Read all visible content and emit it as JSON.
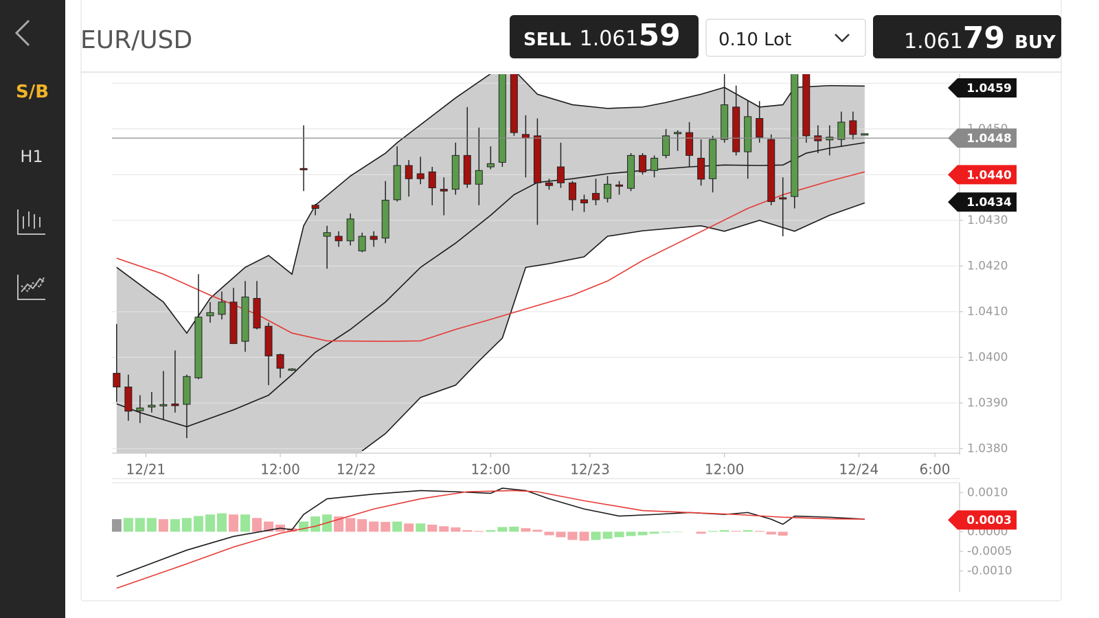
{
  "sidebar": {
    "items": [
      "S/B",
      "H1"
    ]
  },
  "header": {
    "title": "EUR/USD",
    "sell": {
      "label": "SELL",
      "price": "1.061",
      "pips": "59"
    },
    "lot": "0.10 Lot",
    "buy": {
      "price": "1.061",
      "pips": "79",
      "label": "BUY"
    }
  },
  "chart_data": [
    {
      "type": "candlestick",
      "candles": {
        "open": [
          1.03965,
          1.03935,
          1.03883,
          1.03891,
          1.03894,
          1.03898,
          1.03897,
          1.03955,
          1.04091,
          1.04094,
          1.04121,
          1.04035,
          1.04129,
          1.04068,
          1.04006,
          1.03973,
          1.04412,
          1.04333,
          1.04265,
          1.04265,
          1.04255,
          1.04233,
          1.04265,
          1.04261,
          1.04345,
          1.0442,
          1.04402,
          1.04406,
          1.04368,
          1.04368,
          1.04442,
          1.04379,
          1.04417,
          1.04427,
          1.04624,
          1.04488,
          1.04485,
          1.04382,
          1.04417,
          1.04382,
          1.04345,
          1.04359,
          1.04348,
          1.04376,
          1.0437,
          1.04442,
          1.04409,
          1.04442,
          1.04488,
          1.04492,
          1.04436,
          1.04391,
          1.04477,
          1.04548,
          1.0445,
          1.04523,
          1.04477,
          1.04348,
          1.04352,
          1.04621,
          1.04485,
          1.04476,
          1.04477,
          1.04518,
          1.04488
        ],
        "high": [
          1.04073,
          1.03962,
          1.03917,
          1.03924,
          1.0397,
          1.04015,
          1.03962,
          1.04182,
          1.04121,
          1.04144,
          1.04152,
          1.04167,
          1.04167,
          1.04076,
          1.04008,
          1.03976,
          1.04508,
          1.04336,
          1.04288,
          1.04276,
          1.04315,
          1.04273,
          1.04276,
          1.04386,
          1.04462,
          1.04432,
          1.04439,
          1.04417,
          1.04394,
          1.0447,
          1.04548,
          1.04503,
          1.04462,
          1.04644,
          1.04652,
          1.0453,
          1.04523,
          1.04391,
          1.0447,
          1.04386,
          1.04356,
          1.04391,
          1.04397,
          1.04386,
          1.04447,
          1.04447,
          1.04442,
          1.045,
          1.04497,
          1.04515,
          1.04477,
          1.04485,
          1.04627,
          1.04595,
          1.04561,
          1.04561,
          1.04488,
          1.04394,
          1.04667,
          1.04629,
          1.04508,
          1.04508,
          1.04538,
          1.04538,
          1.0449
        ],
        "low": [
          1.03902,
          1.03861,
          1.03856,
          1.03879,
          1.03864,
          1.03879,
          1.03823,
          1.03952,
          1.04076,
          1.04083,
          1.0403,
          1.04012,
          1.04061,
          1.03939,
          1.03955,
          1.0397,
          1.04364,
          1.04311,
          1.04194,
          1.04242,
          1.04245,
          1.0423,
          1.04242,
          1.0425,
          1.04341,
          1.04352,
          1.04379,
          1.04333,
          1.04311,
          1.04356,
          1.04371,
          1.04333,
          1.04412,
          1.04417,
          1.04485,
          1.04394,
          1.0429,
          1.04367,
          1.04371,
          1.04321,
          1.04318,
          1.04333,
          1.04339,
          1.04356,
          1.04364,
          1.044,
          1.04394,
          1.04436,
          1.04452,
          1.04417,
          1.04376,
          1.04361,
          1.0447,
          1.04442,
          1.04391,
          1.0447,
          1.04333,
          1.04265,
          1.04326,
          1.0447,
          1.04447,
          1.04442,
          1.04462,
          1.04477,
          1.04486
        ],
        "close": [
          1.03935,
          1.03882,
          1.03889,
          1.03895,
          1.03895,
          1.03894,
          1.03958,
          1.04088,
          1.04098,
          1.04121,
          1.0403,
          1.04132,
          1.04064,
          1.04003,
          1.03976,
          1.03973,
          1.04409,
          1.04326,
          1.04273,
          1.04255,
          1.04303,
          1.04265,
          1.04258,
          1.04344,
          1.0442,
          1.04391,
          1.04391,
          1.04371,
          1.04364,
          1.04442,
          1.04379,
          1.04409,
          1.04424,
          1.04624,
          1.04492,
          1.0448,
          1.04382,
          1.04376,
          1.04382,
          1.04345,
          1.04338,
          1.04345,
          1.04379,
          1.04374,
          1.04442,
          1.04406,
          1.04436,
          1.04485,
          1.04491,
          1.04442,
          1.0439,
          1.04477,
          1.04553,
          1.0445,
          1.04527,
          1.04482,
          1.04341,
          1.04345,
          1.04621,
          1.04485,
          1.04474,
          1.04482,
          1.04515,
          1.04488,
          1.04488
        ]
      },
      "up_color": "#5c9a4c",
      "down_color": "#a3120f",
      "band_fill": "#cdcdcd",
      "series": [
        {
          "color": "#1a1a1a",
          "x": [
            0,
            4,
            6,
            8,
            9,
            11,
            13,
            15,
            16,
            17,
            20,
            23,
            24,
            29,
            32,
            34,
            36,
            39,
            42,
            45,
            47,
            50,
            52,
            55,
            57,
            58,
            61,
            64
          ],
          "values": [
            1.04197,
            1.04121,
            1.04053,
            1.04129,
            1.04152,
            1.04197,
            1.04223,
            1.04182,
            1.04288,
            1.04333,
            1.04397,
            1.04447,
            1.0447,
            1.04568,
            1.04621,
            1.04629,
            1.04576,
            1.04553,
            1.04545,
            1.04548,
            1.04558,
            1.04576,
            1.04591,
            1.04548,
            1.04553,
            1.04591,
            1.04595,
            1.04594
          ]
        },
        {
          "color": "#1a1a1a",
          "x": [
            0,
            2,
            6,
            10,
            13,
            15,
            17,
            20,
            23,
            26,
            29,
            32,
            34,
            36,
            39,
            42,
            45,
            49,
            52,
            55,
            57,
            59,
            61,
            64
          ],
          "values": [
            1.03898,
            1.03879,
            1.03848,
            1.03885,
            1.03917,
            1.03962,
            1.04011,
            1.04061,
            1.04121,
            1.04197,
            1.0425,
            1.04311,
            1.04356,
            1.04383,
            1.04391,
            1.04402,
            1.04409,
            1.04417,
            1.04421,
            1.0442,
            1.04421,
            1.04447,
            1.04458,
            1.0447
          ]
        },
        {
          "color": "#1a1a1a",
          "x": [
            21,
            23,
            26,
            29,
            31,
            33,
            35,
            37,
            40,
            42,
            45,
            50,
            52,
            55,
            58,
            61,
            64
          ],
          "values": [
            1.03795,
            1.03833,
            1.03912,
            1.03939,
            1.03992,
            1.04042,
            1.04197,
            1.04205,
            1.0422,
            1.04265,
            1.04277,
            1.04288,
            1.04276,
            1.043,
            1.04276,
            1.04311,
            1.04338
          ]
        },
        {
          "color": "#e53935",
          "x": [
            0,
            4,
            8,
            12,
            15,
            18,
            23,
            26,
            29,
            32,
            35,
            39,
            42,
            45,
            48,
            51,
            54,
            57,
            61,
            64
          ],
          "values": [
            1.04217,
            1.04182,
            1.04136,
            1.04094,
            1.04053,
            1.04036,
            1.04035,
            1.04036,
            1.04061,
            1.04083,
            1.04106,
            1.04136,
            1.04167,
            1.04212,
            1.0425,
            1.04288,
            1.04326,
            1.04356,
            1.04386,
            1.04406
          ]
        }
      ],
      "xlim": [
        -0.4,
        72
      ],
      "xticks": [
        {
          "value": 2.5,
          "label": "12/21"
        },
        {
          "value": 14,
          "label": "12:00"
        },
        {
          "value": 20.5,
          "label": "12/22"
        },
        {
          "value": 32,
          "label": "12:00"
        },
        {
          "value": 40.5,
          "label": "12/23"
        },
        {
          "value": 52,
          "label": "12:00"
        },
        {
          "value": 63.5,
          "label": "12/24"
        },
        {
          "value": 70,
          "label": "6:00"
        }
      ],
      "ylim": [
        1.0379,
        1.0462
      ],
      "yticks": [
        {
          "value": 1.038,
          "label": "1.0380"
        },
        {
          "value": 1.039,
          "label": "1.0390"
        },
        {
          "value": 1.04,
          "label": "1.0400"
        },
        {
          "value": 1.041,
          "label": "1.0410"
        },
        {
          "value": 1.042,
          "label": "1.0420"
        },
        {
          "value": 1.043,
          "label": "1.0430"
        },
        {
          "value": 1.044,
          "label": "1.0440"
        },
        {
          "value": 1.045,
          "label": "1.0450"
        },
        {
          "value": 1.046,
          "label": "1.0460"
        }
      ],
      "grid": true,
      "current_price": {
        "value": 1.0448,
        "color": "#8a8a8a"
      },
      "markers": [
        {
          "value": 1.0459,
          "color": "#111111"
        },
        {
          "value": 1.044,
          "label": "1.0440",
          "color": "#ee1c1c"
        },
        {
          "value": 1.0434,
          "color": "#111111"
        }
      ]
    },
    {
      "type": "macd",
      "histogram": {
        "values": [
          0.00032,
          0.00035,
          0.00035,
          0.00035,
          0.00032,
          0.00032,
          0.00035,
          0.0004,
          0.00044,
          0.00047,
          0.00044,
          0.00044,
          0.00035,
          0.00026,
          0.00018,
          9e-05,
          0.00026,
          0.00039,
          0.00044,
          0.00039,
          0.00035,
          0.00032,
          0.00026,
          0.00025,
          0.00026,
          0.00021,
          0.00021,
          0.00018,
          0.00014,
          0.00011,
          4e-05,
          2e-05,
          4e-05,
          0.00012,
          0.00013,
          9e-05,
          5e-05,
          -9e-05,
          -0.00014,
          -0.00021,
          -0.00023,
          -0.00021,
          -0.00018,
          -0.00014,
          -0.00011,
          -9e-05,
          -5e-05,
          -2e-05,
          -1e-05,
          0,
          -5e-05,
          2e-05,
          4e-05,
          2e-05,
          4e-05,
          2e-05,
          -7e-05,
          -0.0001,
          0,
          0,
          0,
          0,
          0,
          0,
          0
        ],
        "colors": {
          "up": "#9ae69a",
          "down": "#f5a3a8",
          "neutral": "#9a9a9a"
        }
      },
      "series": [
        {
          "color": "#1a1a1a",
          "x": [
            0,
            6,
            10,
            14,
            15,
            16,
            18,
            22,
            26,
            29,
            32,
            33,
            35,
            37,
            40,
            43,
            46,
            49,
            52,
            54,
            56,
            57,
            58,
            61,
            64
          ],
          "values": [
            -0.00114,
            -0.00047,
            -0.00012,
            9e-05,
            5e-05,
            0.00044,
            0.00084,
            0.00096,
            0.00105,
            0.00102,
            0.00098,
            0.00111,
            0.00105,
            0.00084,
            0.00058,
            0.0004,
            0.00044,
            0.00049,
            0.00044,
            0.00049,
            0.00032,
            0.00019,
            0.0004,
            0.00037,
            0.00032
          ]
        },
        {
          "color": "#e53935",
          "x": [
            0,
            6,
            10,
            14,
            17,
            22,
            26,
            30,
            34,
            36,
            40,
            45,
            49,
            53,
            57,
            61,
            64
          ],
          "values": [
            -0.00144,
            -0.00082,
            -0.00039,
            -4e-05,
            0.00014,
            0.00058,
            0.00084,
            0.00102,
            0.00105,
            0.00102,
            0.00079,
            0.00054,
            0.00049,
            0.00044,
            0.00037,
            0.00033,
            0.00032
          ]
        }
      ],
      "xlim": [
        -0.4,
        72
      ],
      "ylim": [
        -0.0015,
        0.00125
      ],
      "yticks": [
        {
          "value": 0.001,
          "label": "0.0010"
        },
        {
          "value": 0,
          "label": "0.0000"
        },
        -0.0005,
        {
          "value": -0.001,
          "label": "-0.0010"
        }
      ],
      "markers": [
        {
          "value": 0.0003,
          "color": "#ee1c1c"
        }
      ]
    }
  ]
}
